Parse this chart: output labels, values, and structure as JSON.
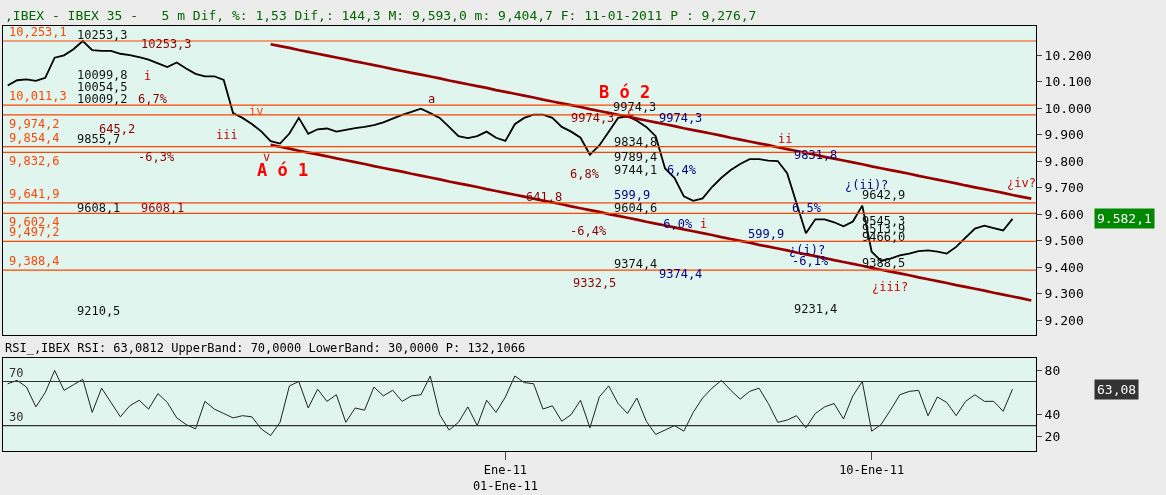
{
  "chart_data": [
    {
      "type": "line",
      "title": ",IBEX - IBEX 35 -   5 m Dif, %: 1,53 Dif,: 144,3 M: 9,593,0 m: 9,404,7 F: 11-01-2011 P : 9,276,7",
      "categories": [
        null,
        null,
        null,
        null,
        null,
        null,
        null,
        null,
        null,
        null,
        null,
        null,
        null,
        null,
        null,
        null,
        null,
        null,
        null,
        null,
        null,
        null,
        null,
        null,
        null,
        null,
        null,
        null,
        null,
        null,
        null,
        null,
        null,
        null,
        null,
        null,
        null,
        null,
        null,
        null,
        null,
        null,
        null,
        null,
        null,
        null,
        null,
        null,
        null,
        null,
        null,
        null,
        null,
        null,
        null,
        null,
        null,
        null,
        null,
        null,
        null,
        null,
        null,
        null,
        null,
        null,
        null,
        null,
        null,
        null,
        null,
        null,
        null,
        null,
        null,
        null,
        null,
        null,
        null,
        null,
        null,
        null,
        null,
        null,
        null,
        null,
        null,
        null,
        null,
        null,
        null,
        null,
        null,
        null,
        null,
        null,
        null,
        null,
        null,
        null,
        null,
        null,
        null,
        null,
        null,
        null,
        null,
        null,
        null,
        null
      ],
      "series": [
        {
          "color": "#000000",
          "values": [
            10085,
            10105,
            10108,
            10103,
            10114,
            10190,
            10199,
            10222,
            10253,
            10219,
            10216,
            10216,
            10205,
            10200,
            10192,
            10183,
            10169,
            10155,
            10172,
            10149,
            10129,
            10120,
            10120,
            10106,
            9981,
            9963,
            9940,
            9912,
            9875,
            9866,
            9904,
            9963,
            9903,
            9920,
            9923,
            9911,
            9918,
            9924,
            9929,
            9936,
            9946,
            9960,
            9974,
            9986,
            9998,
            9981,
            9963,
            9929,
            9894,
            9887,
            9894,
            9911,
            9888,
            9876,
            9939,
            9963,
            9975,
            9975,
            9963,
            9929,
            9911,
            9888,
            9824,
            9859,
            9911,
            9963,
            9969,
            9952,
            9929,
            9894,
            9772,
            9737,
            9667,
            9650,
            9659,
            9702,
            9737,
            9766,
            9789,
            9807,
            9807,
            9802,
            9800,
            9754,
            9641,
            9528,
            9580,
            9580,
            9569,
            9554,
            9572,
            9632,
            9458,
            9423,
            9432,
            9444,
            9451,
            9460,
            9463,
            9458,
            9451,
            9476,
            9511,
            9545,
            9556,
            9547,
            9538,
            9582,
            null,
            null
          ]
        },
        {
          "color": "#990000",
          "values": [
            null,
            null,
            null,
            null,
            null,
            null,
            null,
            null,
            null,
            null,
            null,
            null,
            null,
            null,
            null,
            null,
            null,
            null,
            null,
            null,
            null,
            null,
            null,
            null,
            null,
            null,
            null,
            null,
            10241,
            10234,
            10227,
            10219,
            10212,
            10205,
            10198,
            10191,
            10184,
            10176,
            10169,
            10162,
            10155,
            10147,
            10140,
            10133,
            10126,
            10119,
            10112,
            10104,
            10097,
            10090,
            10083,
            10076,
            10068,
            10061,
            10054,
            10047,
            10040,
            10032,
            10025,
            10018,
            10011,
            10004,
            9996,
            9989,
            9982,
            9975,
            9968,
            9960,
            9953,
            9946,
            9939,
            9932,
            9924,
            9917,
            9910,
            9903,
            9896,
            9888,
            9881,
            9874,
            9867,
            9860,
            9852,
            9845,
            9838,
            9831,
            9824,
            9816,
            9809,
            9802,
            9795,
            9788,
            9780,
            9773,
            9766,
            9759,
            9752,
            9744,
            9737,
            9730,
            9723,
            9716,
            9708,
            9701,
            9694,
            9687,
            9680,
            9672,
            9665,
            9658
          ]
        },
        {
          "color": "#990000",
          "values": [
            null,
            null,
            null,
            null,
            null,
            null,
            null,
            null,
            null,
            null,
            null,
            null,
            null,
            null,
            null,
            null,
            null,
            null,
            null,
            null,
            null,
            null,
            null,
            null,
            null,
            null,
            null,
            null,
            9861,
            9854,
            9847,
            9839,
            9832,
            9825,
            9818,
            9810,
            9803,
            9796,
            9789,
            9781,
            9774,
            9767,
            9760,
            9752,
            9745,
            9738,
            9731,
            9723,
            9716,
            9709,
            9702,
            9694,
            9687,
            9680,
            9673,
            9666,
            9658,
            9651,
            9644,
            9637,
            9629,
            9622,
            9615,
            9608,
            9600,
            9593,
            9586,
            9579,
            9571,
            9564,
            9557,
            9550,
            9542,
            9535,
            9528,
            9521,
            9513,
            9506,
            9499,
            9492,
            9484,
            9477,
            9470,
            9463,
            9455,
            9448,
            9441,
            9434,
            9426,
            9419,
            9412,
            9405,
            9397,
            9390,
            9383,
            9376,
            9369,
            9361,
            9354,
            9347,
            9340,
            9332,
            9325,
            9318,
            9311,
            9303,
            9296,
            9289,
            9282,
            9274
          ]
        }
      ],
      "ref_lines": [
        {
          "axis": "y",
          "value": 10253.1,
          "label": "10,253,1",
          "color": "#ff4400"
        },
        {
          "axis": "y",
          "value": 10011.3,
          "label": "10,011,3",
          "color": "#ff4400"
        },
        {
          "axis": "y",
          "value": 9974.2,
          "label": "9,974,2",
          "color": "#ff4400"
        },
        {
          "axis": "y",
          "value": 9854.4,
          "label": "9,854,4",
          "color": "#ff4400"
        },
        {
          "axis": "y",
          "value": 9832.6,
          "label": "9,832,6",
          "color": "#ff4400"
        },
        {
          "axis": "y",
          "value": 9641.9,
          "label": "9,641,9",
          "color": "#ff4400"
        },
        {
          "axis": "y",
          "value": 9602.4,
          "label": "9,602,4",
          "color": "#ff4400"
        },
        {
          "axis": "y",
          "value": 9497.2,
          "label": "9,497,2",
          "color": "#ff4400"
        },
        {
          "axis": "y",
          "value": 9388.4,
          "label": "9,388,4",
          "color": "#ff4400"
        }
      ],
      "annotations": [
        "10253,3",
        "10253,3",
        "i",
        "10099,8",
        "10054,5",
        "10009,2",
        "6,7%",
        "iii",
        "iv",
        "645,2",
        "9855,7",
        "-6,3%",
        "v",
        "A ó 1",
        "9608,1",
        "9608,1",
        "9210,5",
        "a",
        "B ó 2",
        "9974,3",
        "c",
        "9974,3",
        "9974,3",
        "9834,8",
        "9789,4",
        "9744,1",
        "6,4%",
        "6,8%",
        "599,9",
        "9604,6",
        "641,8",
        "-6,0%",
        "i",
        "-6,4%",
        "9374,4",
        "9374,4",
        "9332,5",
        "ii",
        "9831,8",
        "6,5%",
        "599,9",
        "¿(i)?",
        "-6,1%",
        "9231,4",
        "¿(ii)?",
        "9642,9",
        "9545,3",
        "9513,9",
        "9466,0",
        "9388,5",
        "¿iii?",
        "¿iv?",
        "9.582,1"
      ],
      "ylim": [
        9145,
        10308
      ],
      "yticks": [
        {
          "value": 9200,
          "label": "9.200"
        },
        {
          "value": 9300,
          "label": "9.300"
        },
        {
          "value": 9400,
          "label": "9.400"
        },
        {
          "value": 9500,
          "label": "9.500"
        },
        {
          "value": 9600,
          "label": "9.600"
        },
        {
          "value": 9700,
          "label": "9.700"
        },
        {
          "value": 9800,
          "label": "9.800"
        },
        {
          "value": 9900,
          "label": "9.900"
        },
        {
          "value": 10000,
          "label": "10.000"
        },
        {
          "value": 10100,
          "label": "10.100"
        },
        {
          "value": 10200,
          "label": "10.200"
        }
      ],
      "tick_labels": "y",
      "grid": false
    },
    {
      "type": "line",
      "title": "RSI_,IBEX RSI: 63,0812 UpperBand: 70,0000 LowerBand: 30,0000 P: 132,1066",
      "categories": [
        null,
        null,
        null,
        null,
        null,
        null,
        null,
        null,
        null,
        null,
        null,
        null,
        null,
        null,
        null,
        null,
        null,
        null,
        null,
        null,
        null,
        null,
        null,
        null,
        null,
        null,
        null,
        null,
        null,
        null,
        null,
        null,
        null,
        null,
        null,
        null,
        null,
        null,
        null,
        null,
        null,
        null,
        null,
        null,
        null,
        null,
        null,
        null,
        null,
        null,
        null,
        null,
        null,
        "Ene-11\n01-Ene-11",
        null,
        null,
        null,
        null,
        null,
        null,
        null,
        null,
        null,
        null,
        null,
        null,
        null,
        null,
        null,
        null,
        null,
        null,
        null,
        null,
        null,
        null,
        null,
        null,
        null,
        null,
        null,
        null,
        null,
        null,
        null,
        null,
        null,
        null,
        null,
        null,
        null,
        null,
        "10-Ene-11",
        null,
        null,
        null,
        null,
        null,
        null,
        null,
        null,
        null,
        null,
        null,
        null,
        null,
        null,
        null,
        null,
        null
      ],
      "series": [
        {
          "color": "#222222",
          "values": [
            68,
            71,
            65,
            47,
            60,
            80,
            62,
            67,
            72,
            42,
            64,
            51,
            38,
            48,
            53,
            45,
            59,
            51,
            37,
            31,
            27,
            52,
            45,
            41,
            37,
            39,
            38,
            27,
            21,
            33,
            66,
            70,
            46,
            63,
            52,
            58,
            33,
            46,
            44,
            65,
            57,
            62,
            52,
            57,
            58,
            75,
            40,
            26,
            33,
            47,
            30,
            53,
            42,
            56,
            75,
            69,
            68,
            45,
            48,
            34,
            40,
            53,
            28,
            56,
            66,
            50,
            41,
            55,
            34,
            22,
            26,
            30,
            25,
            42,
            55,
            64,
            71,
            62,
            54,
            61,
            64,
            50,
            33,
            35,
            39,
            28,
            41,
            47,
            50,
            36,
            57,
            70,
            25,
            31,
            44,
            58,
            61,
            62,
            39,
            56,
            51,
            39,
            52,
            58,
            52,
            52,
            43,
            63.08,
            null,
            null
          ]
        }
      ],
      "ref_lines": [
        {
          "axis": "y",
          "value": 70,
          "label": "70",
          "color": "#333333"
        },
        {
          "axis": "y",
          "value": 30,
          "label": "30",
          "color": "#333333"
        }
      ],
      "annotations": [
        "63,08"
      ],
      "ylim": [
        7,
        91
      ],
      "yticks": [
        20,
        40,
        80
      ],
      "grid": false
    }
  ]
}
